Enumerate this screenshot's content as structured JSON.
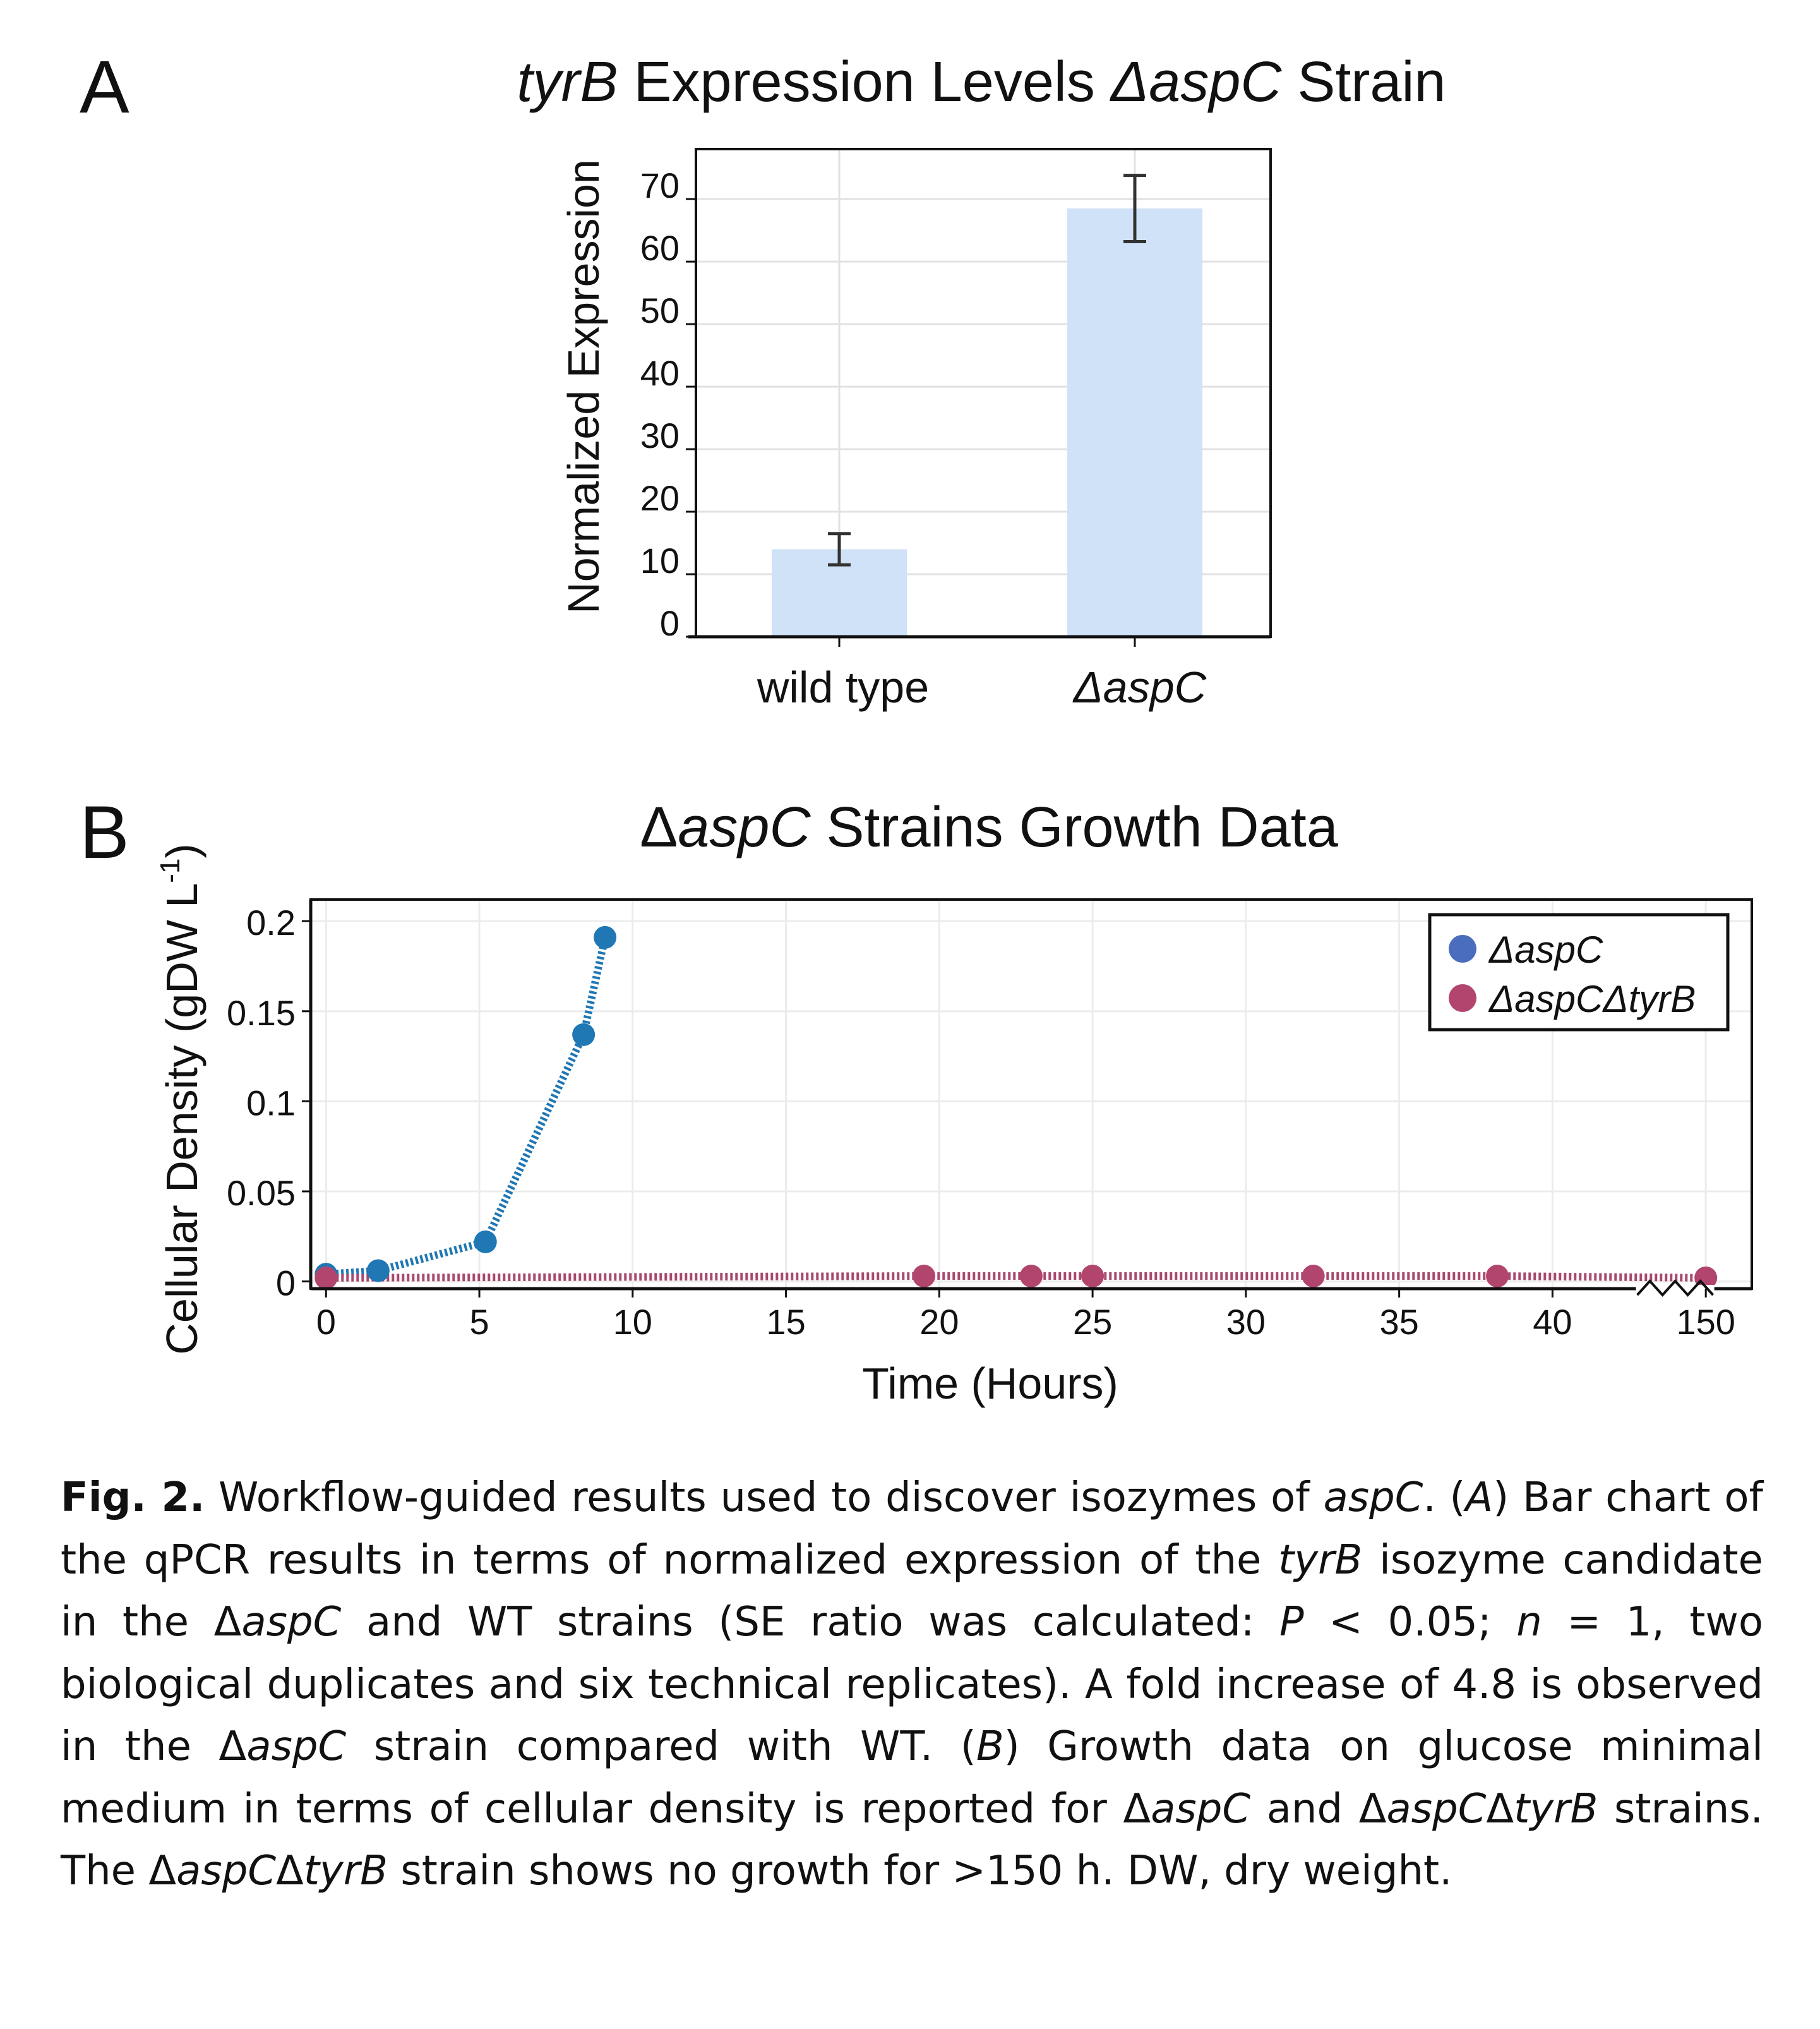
{
  "panels": [
    {
      "letter": "A",
      "title_segments": [
        {
          "text": "tyrB",
          "italic": true
        },
        {
          "text": " Expression Levels ",
          "italic": false
        },
        {
          "text": "ΔaspC",
          "italic": true
        },
        {
          "text": " Strain",
          "italic": false
        }
      ],
      "ylabel": "Normalized Expression"
    },
    {
      "letter": "B",
      "title_segments": [
        {
          "text": "Δ",
          "italic": false
        },
        {
          "text": "aspC",
          "italic": true
        },
        {
          "text": " Strains Growth Data",
          "italic": false
        }
      ],
      "ylabel": "Cellular Density (gDW L-1)",
      "xlabel": "Time (Hours)"
    }
  ],
  "chart_data": [
    {
      "type": "bar",
      "categories": [
        "wild type",
        "ΔaspC"
      ],
      "category_italic": [
        false,
        true
      ],
      "values": [
        14,
        68.5
      ],
      "error": [
        2.5,
        5.3
      ],
      "ylim": [
        0,
        78
      ],
      "yticks": [
        0,
        10,
        20,
        30,
        40,
        50,
        60,
        70
      ],
      "grid": true,
      "colors": {
        "bar": "#cfe2f7",
        "error_bar": "#333333"
      }
    },
    {
      "type": "line",
      "ylim": [
        -0.004,
        0.212
      ],
      "yticks": [
        0,
        0.05,
        0.1,
        0.15,
        0.2
      ],
      "ytick_labels": [
        "0",
        "0.05",
        "0.1",
        "0.15",
        "0.2"
      ],
      "xlim": [
        -0.5,
        46.5
      ],
      "xticks": [
        0,
        5,
        10,
        15,
        20,
        25,
        30,
        35,
        40,
        150
      ],
      "x_break": {
        "from": 43,
        "to": 150,
        "display_at": 45
      },
      "grid": true,
      "legend_position": "top-right",
      "series": [
        {
          "name": "ΔaspC",
          "line_color": "#1f77b4",
          "marker_color": "#1f77b4",
          "legend_color": "#4a6ebd",
          "points": [
            [
              0,
              0.004
            ],
            [
              1.7,
              0.006
            ],
            [
              5.2,
              0.022
            ],
            [
              8.4,
              0.137
            ],
            [
              9.1,
              0.191
            ]
          ]
        },
        {
          "name": "ΔaspCΔtyrB",
          "line_color": "#a8486e",
          "marker_color": "#b2456e",
          "legend_color": "#b2456e",
          "points": [
            [
              0,
              0.002
            ],
            [
              19.5,
              0.003
            ],
            [
              23,
              0.003
            ],
            [
              25,
              0.003
            ],
            [
              32.2,
              0.003
            ],
            [
              38.2,
              0.003
            ],
            [
              150,
              0.002
            ]
          ]
        }
      ]
    }
  ],
  "caption": {
    "segments": [
      {
        "text": "Fig. 2.",
        "style": "bold"
      },
      {
        "text": "    Workflow-guided results used to discover isozymes of ",
        "style": "normal"
      },
      {
        "text": "aspC",
        "style": "italic"
      },
      {
        "text": ". (",
        "style": "normal"
      },
      {
        "text": "A",
        "style": "italic"
      },
      {
        "text": ") Bar chart of the qPCR results in terms of normalized expression of the ",
        "style": "normal"
      },
      {
        "text": "tyrB",
        "style": "italic"
      },
      {
        "text": " isozyme candidate in the Δ",
        "style": "normal"
      },
      {
        "text": "aspC",
        "style": "italic"
      },
      {
        "text": " and WT strains (SE ratio was calculated: ",
        "style": "normal"
      },
      {
        "text": "P",
        "style": "italic"
      },
      {
        "text": " < 0.05; ",
        "style": "normal"
      },
      {
        "text": "n",
        "style": "italic"
      },
      {
        "text": " = 1, two biological duplicates and six technical replicates). A fold increase of 4.8 is observed in the Δ",
        "style": "normal"
      },
      {
        "text": "aspC",
        "style": "italic"
      },
      {
        "text": " strain compared with WT. (",
        "style": "normal"
      },
      {
        "text": "B",
        "style": "italic"
      },
      {
        "text": ") Growth data on glucose minimal medium in terms of cellular density is reported for Δ",
        "style": "normal"
      },
      {
        "text": "aspC",
        "style": "italic"
      },
      {
        "text": " and Δ",
        "style": "normal"
      },
      {
        "text": "aspC",
        "style": "italic"
      },
      {
        "text": "Δ",
        "style": "normal"
      },
      {
        "text": "tyrB",
        "style": "italic"
      },
      {
        "text": " strains. The Δ",
        "style": "normal"
      },
      {
        "text": "aspC",
        "style": "italic"
      },
      {
        "text": "Δ",
        "style": "normal"
      },
      {
        "text": "tyrB",
        "style": "italic"
      },
      {
        "text": " strain shows no growth for >150 h. DW, dry weight.",
        "style": "normal"
      }
    ]
  }
}
